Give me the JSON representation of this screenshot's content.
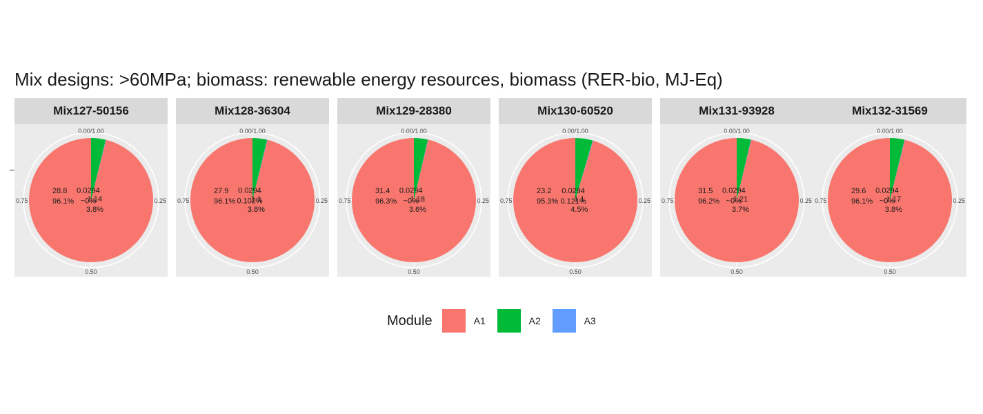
{
  "chart_data": {
    "type": "pie",
    "title": "Mix designs: >60MPa; biomass: renewable energy resources, biomass (RER-bio, MJ-Eq)",
    "legend": {
      "title": "Module",
      "placement": "bottom",
      "entries": [
        {
          "name": "A1",
          "color": "#F8766D"
        },
        {
          "name": "A2",
          "color": "#00BA38"
        },
        {
          "name": "A3",
          "color": "#619CFF"
        }
      ]
    },
    "theta_ticks": [
      "0.00/1.00",
      "0.25",
      "0.50",
      "0.75"
    ],
    "facets": [
      {
        "name": "Mix127-50156",
        "slices": [
          {
            "module": "A1",
            "value": 28.8,
            "percent": "96.1%",
            "label": "28.8\n96.1%"
          },
          {
            "module": "A2",
            "value": 1.14,
            "percent": "3.8%",
            "label": "1.14\n3.8%"
          },
          {
            "module": "A3",
            "value": 0.0294,
            "percent": "~0%",
            "label": "0.0294\n~0%"
          }
        ]
      },
      {
        "name": "Mix128-36304",
        "slices": [
          {
            "module": "A1",
            "value": 27.9,
            "percent": "96.1%",
            "label": "27.9\n96.1%"
          },
          {
            "module": "A2",
            "value": 1.1,
            "percent": "3.8%",
            "label": "1.1\n3.8%"
          },
          {
            "module": "A3",
            "value": 0.0294,
            "percent": "0.102%",
            "label": "0.0294\n0.102%"
          }
        ]
      },
      {
        "name": "Mix129-28380",
        "slices": [
          {
            "module": "A1",
            "value": 31.4,
            "percent": "96.3%",
            "label": "31.4\n96.3%"
          },
          {
            "module": "A2",
            "value": 1.18,
            "percent": "3.6%",
            "label": "1.18\n3.6%"
          },
          {
            "module": "A3",
            "value": 0.0294,
            "percent": "~0%",
            "label": "0.0294\n~0%"
          }
        ]
      },
      {
        "name": "Mix130-60520",
        "slices": [
          {
            "module": "A1",
            "value": 23.2,
            "percent": "95.3%",
            "label": "23.2\n95.3%"
          },
          {
            "module": "A2",
            "value": 1.1,
            "percent": "4.5%",
            "label": "1.1\n4.5%"
          },
          {
            "module": "A3",
            "value": 0.0294,
            "percent": "0.121%",
            "label": "0.0294\n0.121%"
          }
        ]
      },
      {
        "name": "Mix131-93928",
        "slices": [
          {
            "module": "A1",
            "value": 31.5,
            "percent": "96.2%",
            "label": "31.5\n96.2%"
          },
          {
            "module": "A2",
            "value": 1.21,
            "percent": "3.7%",
            "label": "1.21\n3.7%"
          },
          {
            "module": "A3",
            "value": 0.0294,
            "percent": "~0%",
            "label": "0.0294\n~0%"
          }
        ]
      },
      {
        "name": "Mix132-31569",
        "slices": [
          {
            "module": "A1",
            "value": 29.6,
            "percent": "96.1%",
            "label": "29.6\n96.1%"
          },
          {
            "module": "A2",
            "value": 1.17,
            "percent": "3.8%",
            "label": "1.17\n3.8%"
          },
          {
            "module": "A3",
            "value": 0.0294,
            "percent": "~0%",
            "label": "0.0294\n~0%"
          }
        ]
      }
    ]
  }
}
